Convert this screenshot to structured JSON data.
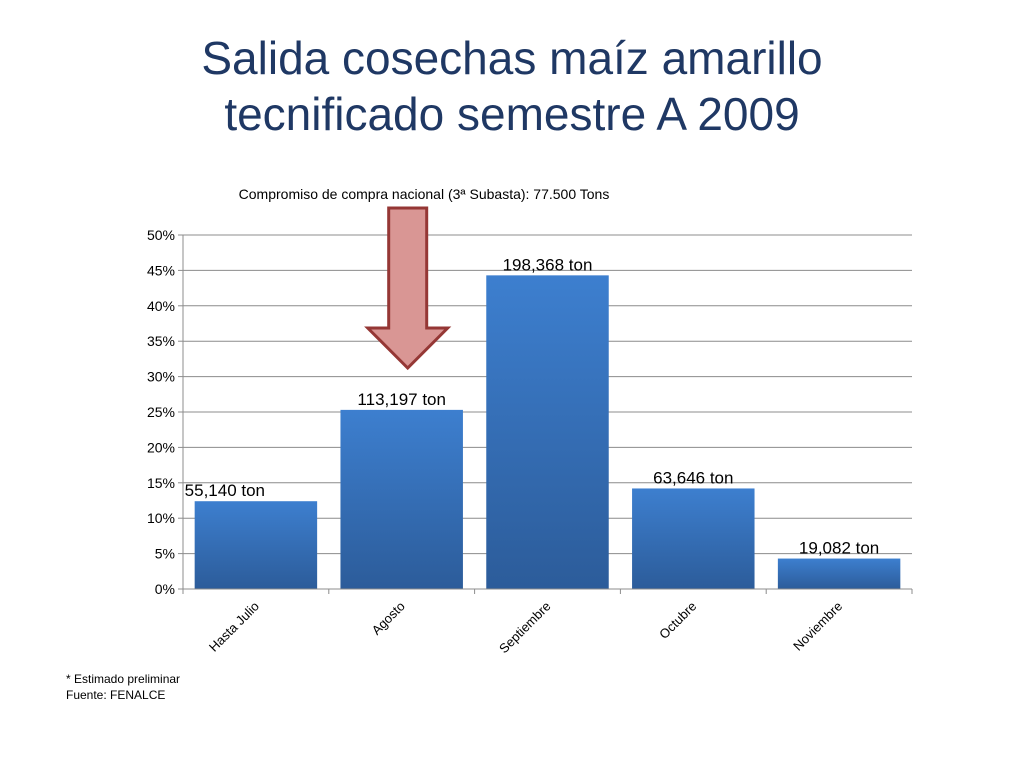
{
  "slide": {
    "title_line1": "Salida cosechas maíz amarillo",
    "title_line2": "tecnificado semestre A 2009"
  },
  "footnotes": {
    "estimate": " * Estimado preliminar",
    "source": "Fuente: FENALCE"
  },
  "chart_data": {
    "type": "bar",
    "subtitle": "Compromiso de compra nacional (3ª Subasta): 77.500 Tons",
    "xlabel": "",
    "ylabel": "",
    "categories": [
      "Hasta Julio",
      "Agosto",
      "Septiembre",
      "Octubre",
      "Noviembre"
    ],
    "values": [
      12.4,
      25.3,
      44.3,
      14.2,
      4.3
    ],
    "data_labels": [
      "55,140 ton",
      "113,197 ton",
      "198,368 ton",
      "63,646 ton",
      "19,082 ton"
    ],
    "ylim": [
      0,
      50
    ],
    "ytick_values": [
      0,
      5,
      10,
      15,
      20,
      25,
      30,
      35,
      40,
      45,
      50
    ],
    "ytick_labels": [
      "0%",
      "5%",
      "10%",
      "15%",
      "20%",
      "25%",
      "30%",
      "35%",
      "40%",
      "45%",
      "50%"
    ],
    "grid": true,
    "legend": "none",
    "annotation": {
      "type": "down-arrow",
      "target_category": "Agosto"
    },
    "colors": {
      "bar_top": "#3d7fcf",
      "bar_bottom": "#2c5c9a",
      "grid": "#8c8c8c",
      "arrow_fill": "#d99694",
      "arrow_stroke": "#953735"
    }
  }
}
